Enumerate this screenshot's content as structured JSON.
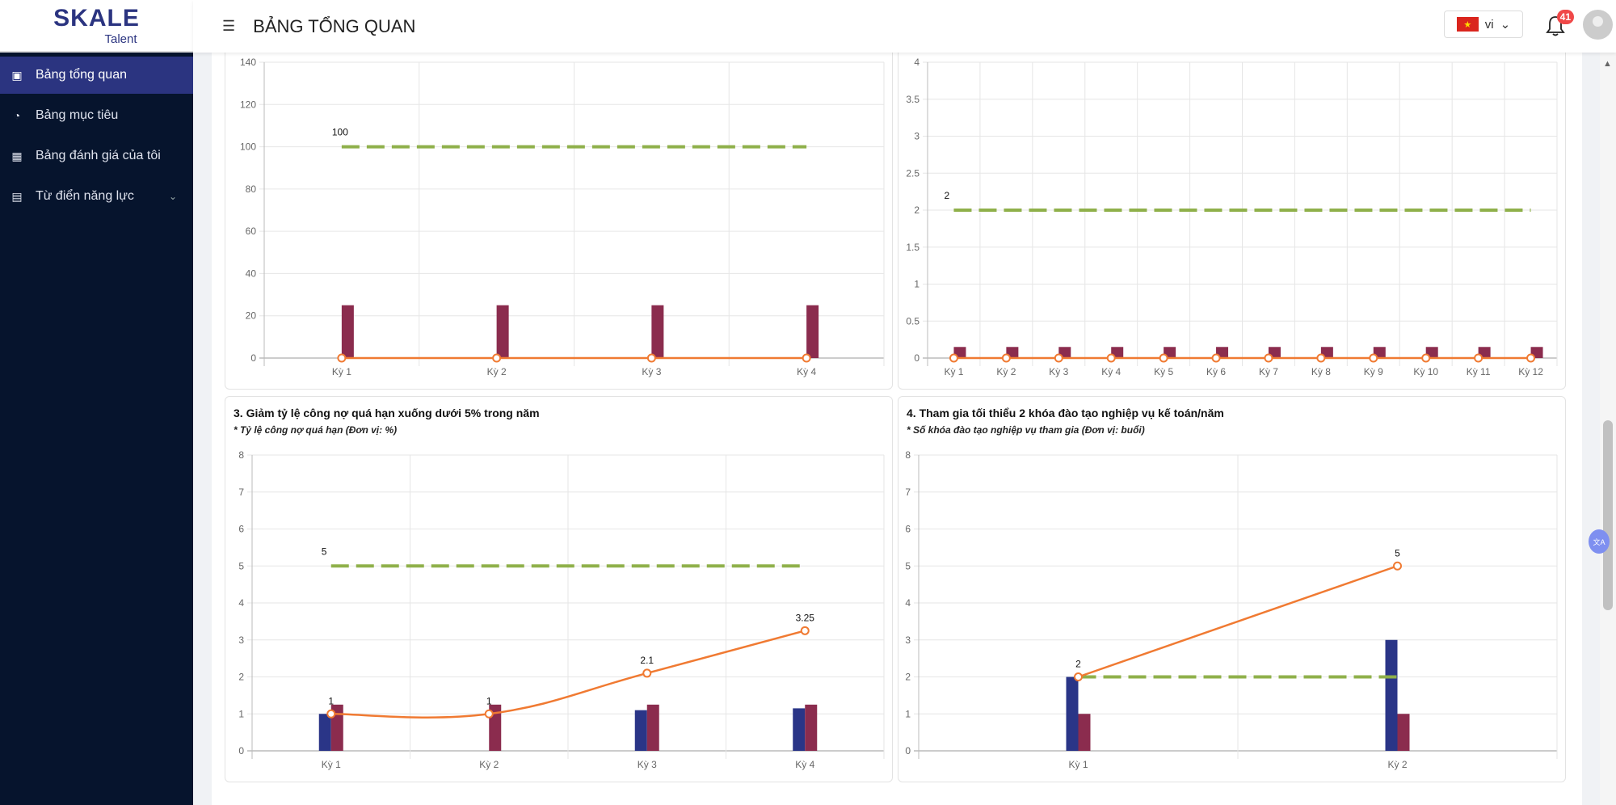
{
  "brand": {
    "logo": "SKALE",
    "sub": "Talent"
  },
  "sidebar": {
    "items": [
      {
        "label": "Bảng tổng quan",
        "icon": "dashboard-icon"
      },
      {
        "label": "Bảng mục tiêu",
        "icon": "gauge-icon"
      },
      {
        "label": "Bảng đánh giá của tôi",
        "icon": "table-icon"
      },
      {
        "label": "Từ điển năng lực",
        "icon": "book-icon"
      }
    ]
  },
  "header": {
    "title": "BẢNG TỔNG QUAN",
    "lang": "vi",
    "notifications": "41"
  },
  "colors": {
    "blue": "#2a3587",
    "maroon": "#8b2c4e",
    "line": "#f07a32",
    "target": "#8fb04a"
  },
  "chart_data": [
    {
      "type": "bar+line",
      "title": "",
      "subtitle": "",
      "categories": [
        "Kỳ 1",
        "Kỳ 2",
        "Kỳ 3",
        "Kỳ 4"
      ],
      "ylim": [
        0,
        140
      ],
      "ystep": 20,
      "yticks": [
        "0",
        "20",
        "40",
        "60",
        "80",
        "100",
        "120",
        "140"
      ],
      "bars_blue": [
        0,
        0,
        0,
        0
      ],
      "bars_maroon": [
        25,
        25,
        25,
        25
      ],
      "line": [
        0,
        0,
        0,
        0
      ],
      "line_labels": false,
      "target": 100,
      "target_label": "100",
      "smooth": false
    },
    {
      "type": "bar+line",
      "title": "",
      "subtitle": "",
      "categories": [
        "Kỳ 1",
        "Kỳ 2",
        "Kỳ 3",
        "Kỳ 4",
        "Kỳ 5",
        "Kỳ 6",
        "Kỳ 7",
        "Kỳ 8",
        "Kỳ 9",
        "Kỳ 10",
        "Kỳ 11",
        "Kỳ 12"
      ],
      "ylim": [
        0,
        4
      ],
      "ystep": 0.5,
      "yticks": [
        "0",
        "0.5",
        "1",
        "1.5",
        "2",
        "2.5",
        "3",
        "3.5",
        "4"
      ],
      "bars_blue": [
        0,
        0,
        0,
        0,
        0,
        0,
        0,
        0,
        0,
        0,
        0,
        0
      ],
      "bars_maroon": [
        0.15,
        0.15,
        0.15,
        0.15,
        0.15,
        0.15,
        0.15,
        0.15,
        0.15,
        0.15,
        0.15,
        0.15
      ],
      "line": [
        0,
        0,
        0,
        0,
        0,
        0,
        0,
        0,
        0,
        0,
        0,
        0
      ],
      "line_labels": false,
      "target": 2,
      "target_label": "2",
      "smooth": false
    },
    {
      "type": "bar+line",
      "title": "3. Giảm tỷ lệ công nợ quá hạn xuống dưới 5% trong năm",
      "subtitle": "* Tỷ lệ công nợ quá hạn (Đơn vị: %)",
      "categories": [
        "Kỳ 1",
        "Kỳ 2",
        "Kỳ 3",
        "Kỳ 4"
      ],
      "ylim": [
        0,
        8
      ],
      "ystep": 1,
      "yticks": [
        "0",
        "1",
        "2",
        "3",
        "4",
        "5",
        "6",
        "7",
        "8"
      ],
      "bars_blue": [
        1,
        0,
        1.1,
        1.15
      ],
      "bars_maroon": [
        1.25,
        1.25,
        1.25,
        1.25
      ],
      "line": [
        1,
        1,
        2.1,
        3.25
      ],
      "line_labels": [
        "1",
        "1",
        "2.1",
        "3.25"
      ],
      "target": 5,
      "target_label": "5",
      "smooth": true
    },
    {
      "type": "bar+line",
      "title": "4. Tham gia tối thiểu 2 khóa đào tạo nghiệp vụ kế toán/năm",
      "subtitle": "* Số khóa đào tạo nghiệp vụ tham gia (Đơn vị: buổi)",
      "categories": [
        "Kỳ 1",
        "Kỳ 2"
      ],
      "ylim": [
        0,
        8
      ],
      "ystep": 1,
      "yticks": [
        "0",
        "1",
        "2",
        "3",
        "4",
        "5",
        "6",
        "7",
        "8"
      ],
      "bars_blue": [
        2,
        3
      ],
      "bars_maroon": [
        1,
        1
      ],
      "line": [
        2,
        5
      ],
      "line_labels": [
        "2",
        "5"
      ],
      "target": 2,
      "target_label": "",
      "smooth": false
    }
  ]
}
